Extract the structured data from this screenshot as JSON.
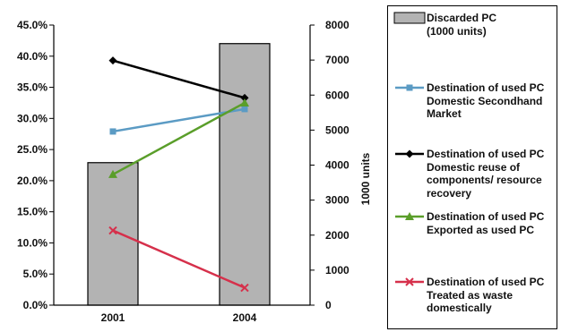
{
  "chart_data": {
    "type": "bar+line",
    "categories": [
      "2001",
      "2004"
    ],
    "left_axis": {
      "ticks": [
        "0.0%",
        "5.0%",
        "10.0%",
        "15.0%",
        "20.0%",
        "25.0%",
        "30.0%",
        "35.0%",
        "40.0%",
        "45.0%"
      ],
      "ylim": [
        0,
        45
      ]
    },
    "right_axis": {
      "label": "1000 units",
      "ticks": [
        "0",
        "1000",
        "2000",
        "3000",
        "4000",
        "5000",
        "6000",
        "7000",
        "8000"
      ],
      "ylim": [
        0,
        8000
      ]
    },
    "bars": {
      "lines": [
        "Discarded PC",
        "(1000 units)"
      ],
      "values": [
        4070,
        7470
      ],
      "color": "#b3b3b3",
      "axis": "right"
    },
    "series": [
      {
        "lines": [
          "Destination of used PC",
          "Domestic Secondhand",
          "Market"
        ],
        "values": [
          27.9,
          31.5
        ],
        "color": "#5b9bc4",
        "marker": "square",
        "axis": "left"
      },
      {
        "lines": [
          "Destination of used PC",
          "Domestic reuse of",
          "components/ resource",
          "recovery"
        ],
        "values": [
          39.3,
          33.3
        ],
        "color": "#000000",
        "marker": "diamond",
        "axis": "left"
      },
      {
        "lines": [
          "Destination of used PC",
          "Exported as used PC"
        ],
        "values": [
          21.0,
          32.5
        ],
        "color": "#5a9e2a",
        "marker": "triangle",
        "axis": "left"
      },
      {
        "lines": [
          "Destination of used PC",
          "Treated as waste",
          "domestically"
        ],
        "values": [
          12.0,
          2.8
        ],
        "color": "#d6304b",
        "marker": "x",
        "axis": "left"
      }
    ],
    "grid": false,
    "legend_position": "right"
  }
}
